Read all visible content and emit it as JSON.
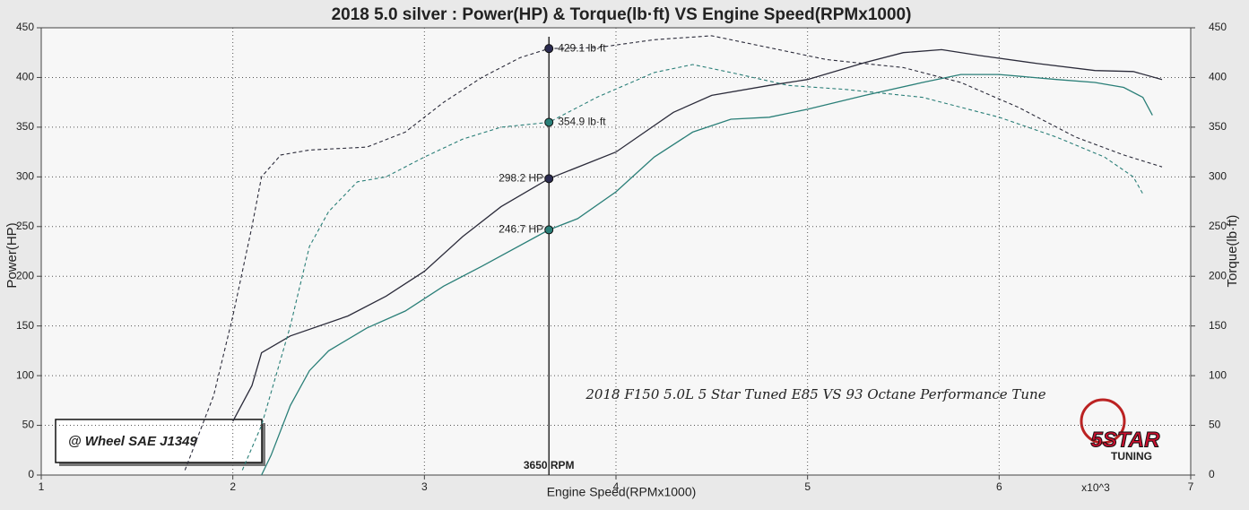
{
  "chart_data": {
    "type": "line",
    "title": "2018 5.0 silver : Power(HP) & Torque(lb·ft) VS Engine Speed(RPMx1000)",
    "x_label": "Engine Speed(RPMx1000)",
    "x_multiplier": "x10^3",
    "y_label": "Power(HP)",
    "y2_label": "Torque(lb·ft)",
    "annotation": "2018 F150 5.0L 5 Star Tuned E85 VS 93 Octane Performance Tune",
    "condition": "@ Wheel SAE J1349",
    "logo": {
      "top": "5STAR",
      "bottom": "TUNING"
    },
    "xlim": [
      1,
      7
    ],
    "xticks": [
      1,
      2,
      3,
      4,
      5,
      6,
      7
    ],
    "ylim": [
      0,
      450
    ],
    "yticks": [
      0,
      50,
      100,
      150,
      200,
      250,
      300,
      350,
      400,
      450
    ],
    "y2lim": [
      0,
      450
    ],
    "y2ticks": [
      0,
      50,
      100,
      150,
      200,
      250,
      300,
      350,
      400,
      450
    ],
    "grid": true,
    "series": [
      {
        "color": "#2b2b3a",
        "dash": false,
        "x": [
          2.0,
          2.1,
          2.15,
          2.3,
          2.6,
          2.8,
          3.0,
          3.2,
          3.4,
          3.65,
          4.0,
          4.3,
          4.5,
          4.8,
          5.0,
          5.3,
          5.5,
          5.7,
          5.9,
          6.2,
          6.5,
          6.7,
          6.85
        ],
        "values": [
          54,
          90,
          123,
          140,
          160,
          180,
          205,
          240,
          270,
          298.2,
          325,
          365,
          382,
          392,
          398,
          415,
          425,
          428,
          422,
          414,
          407,
          406,
          398
        ]
      },
      {
        "color": "#2a7f78",
        "dash": false,
        "x": [
          2.15,
          2.2,
          2.3,
          2.4,
          2.5,
          2.7,
          2.9,
          3.1,
          3.3,
          3.65,
          3.8,
          4.0,
          4.2,
          4.4,
          4.6,
          4.8,
          5.0,
          5.3,
          5.6,
          5.8,
          6.0,
          6.3,
          6.5,
          6.65,
          6.75,
          6.8
        ],
        "values": [
          0,
          20,
          70,
          105,
          125,
          148,
          165,
          190,
          210,
          246.7,
          258,
          285,
          320,
          345,
          358,
          360,
          368,
          382,
          395,
          403,
          403,
          398,
          395,
          390,
          380,
          362
        ]
      },
      {
        "color": "#2b2b3a",
        "dash": true,
        "x": [
          1.75,
          1.9,
          2.0,
          2.1,
          2.15,
          2.25,
          2.4,
          2.7,
          2.9,
          3.1,
          3.3,
          3.5,
          3.65,
          3.9,
          4.2,
          4.5,
          4.8,
          5.1,
          5.5,
          5.8,
          6.1,
          6.4,
          6.65,
          6.85
        ],
        "values": [
          5,
          80,
          160,
          250,
          300,
          322,
          327,
          330,
          345,
          375,
          400,
          420,
          429.1,
          430,
          438,
          442,
          430,
          418,
          410,
          395,
          370,
          340,
          322,
          310
        ]
      },
      {
        "color": "#2a7f78",
        "dash": true,
        "x": [
          2.05,
          2.15,
          2.3,
          2.4,
          2.5,
          2.65,
          2.8,
          3.0,
          3.2,
          3.4,
          3.65,
          3.9,
          4.2,
          4.4,
          4.6,
          4.9,
          5.2,
          5.6,
          6.0,
          6.3,
          6.55,
          6.7,
          6.75
        ],
        "values": [
          5,
          50,
          150,
          230,
          265,
          295,
          300,
          320,
          338,
          350,
          354.9,
          380,
          405,
          413,
          405,
          392,
          388,
          380,
          360,
          340,
          320,
          300,
          283
        ]
      }
    ],
    "cursor": {
      "x": 3.65,
      "label": "3650 RPM",
      "points": [
        {
          "value": 429.1,
          "label": "429.1 lb·ft",
          "color": "#2b2b50"
        },
        {
          "value": 354.9,
          "label": "354.9 lb·ft",
          "color": "#2a7f78"
        },
        {
          "value": 298.2,
          "label": "298.2 HP",
          "color": "#2b2b50"
        },
        {
          "value": 246.7,
          "label": "246.7 HP",
          "color": "#2a7f78"
        }
      ]
    }
  }
}
